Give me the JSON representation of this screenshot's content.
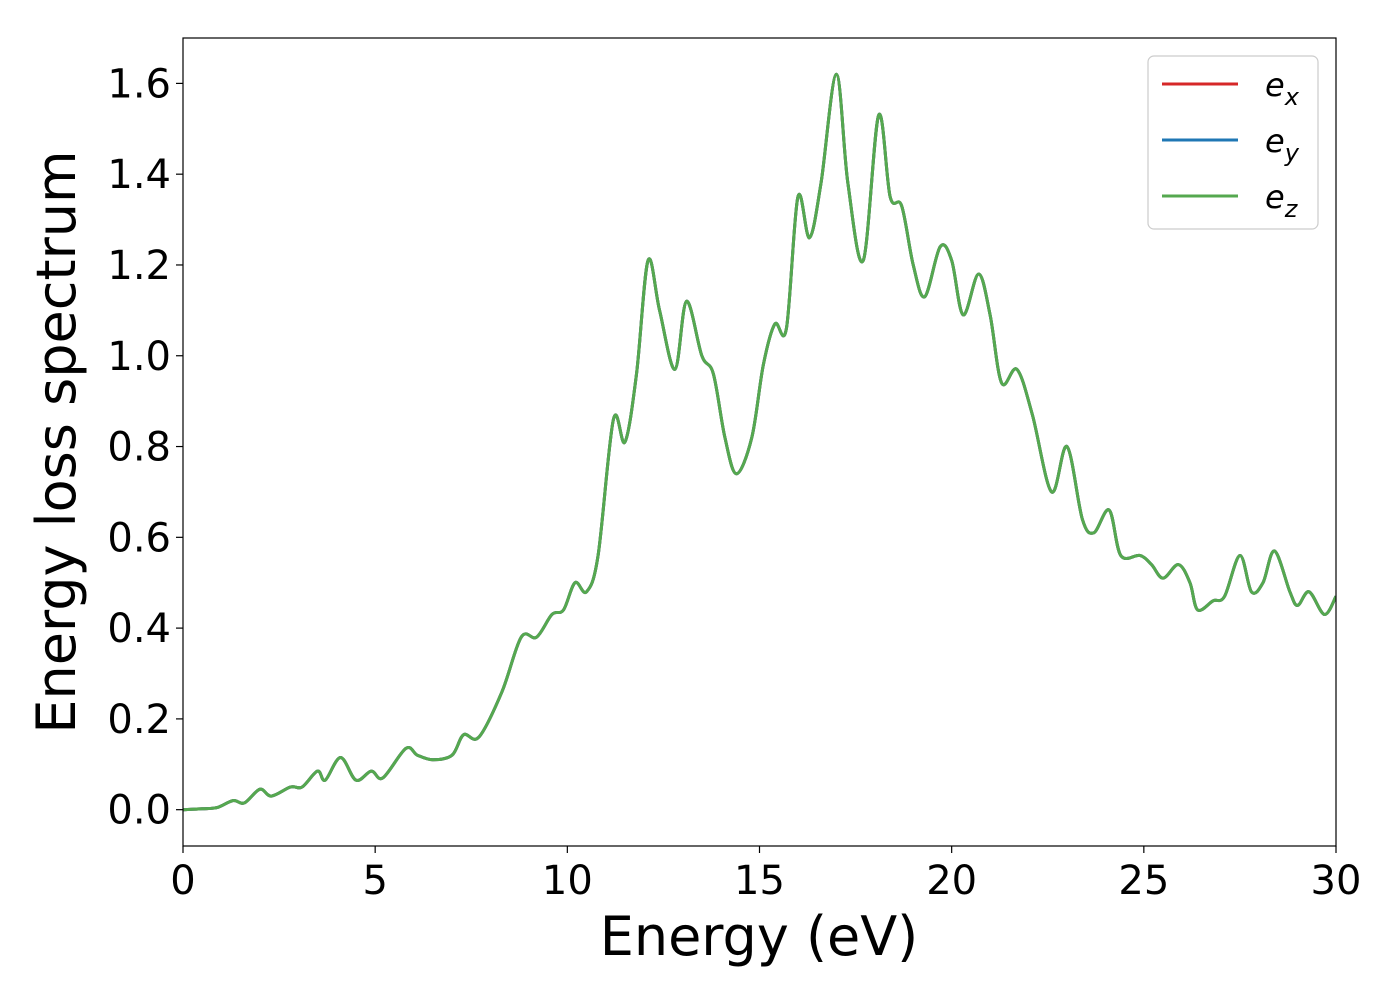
{
  "chart_data": {
    "type": "line",
    "xlabel": "Energy (eV)",
    "ylabel": "Energy loss spectrum",
    "xlim": [
      0,
      30
    ],
    "ylim": [
      -0.08,
      1.7
    ],
    "xticks": [
      "0",
      "5",
      "10",
      "15",
      "20",
      "25",
      "30"
    ],
    "yticks": [
      "0.0",
      "0.2",
      "0.4",
      "0.6",
      "0.8",
      "1.0",
      "1.2",
      "1.4",
      "1.6"
    ],
    "grid": false,
    "legend": {
      "placement": "top-right",
      "entries": [
        {
          "base": "e",
          "sub": "x",
          "color": "#d62728"
        },
        {
          "base": "e",
          "sub": "y",
          "color": "#1f77b4"
        },
        {
          "base": "e",
          "sub": "z",
          "color": "#55a84f"
        }
      ]
    },
    "x": [
      0,
      0.5,
      0.9,
      1.3,
      1.6,
      2.0,
      2.3,
      2.8,
      3.1,
      3.5,
      3.7,
      4.1,
      4.5,
      4.9,
      5.2,
      5.8,
      6.1,
      6.5,
      7.0,
      7.3,
      7.7,
      8.3,
      8.8,
      9.2,
      9.6,
      9.9,
      10.2,
      10.5,
      10.8,
      11.2,
      11.5,
      11.8,
      12.1,
      12.4,
      12.8,
      13.1,
      13.5,
      13.8,
      14.1,
      14.4,
      14.8,
      15.1,
      15.4,
      15.7,
      16.0,
      16.3,
      16.6,
      17.0,
      17.3,
      17.7,
      18.1,
      18.4,
      18.7,
      19.0,
      19.3,
      19.7,
      20.0,
      20.3,
      20.7,
      21.0,
      21.3,
      21.7,
      22.1,
      22.6,
      23.0,
      23.4,
      23.7,
      24.1,
      24.4,
      24.9,
      25.2,
      25.5,
      25.9,
      26.2,
      26.4,
      26.8,
      27.1,
      27.5,
      27.8,
      28.1,
      28.4,
      28.8,
      29.0,
      29.3,
      29.7,
      30.0
    ],
    "series": [
      {
        "name": "",
        "color": "#d62728",
        "values": [
          0.0,
          0.002,
          0.005,
          0.02,
          0.015,
          0.045,
          0.03,
          0.05,
          0.05,
          0.085,
          0.065,
          0.115,
          0.065,
          0.085,
          0.07,
          0.135,
          0.12,
          0.11,
          0.12,
          0.165,
          0.16,
          0.26,
          0.38,
          0.38,
          0.43,
          0.44,
          0.5,
          0.48,
          0.56,
          0.86,
          0.81,
          0.96,
          1.21,
          1.1,
          0.97,
          1.12,
          1.0,
          0.96,
          0.82,
          0.74,
          0.82,
          0.98,
          1.07,
          1.06,
          1.35,
          1.26,
          1.38,
          1.62,
          1.38,
          1.21,
          1.53,
          1.35,
          1.33,
          1.2,
          1.13,
          1.24,
          1.21,
          1.09,
          1.18,
          1.09,
          0.94,
          0.97,
          0.87,
          0.7,
          0.8,
          0.64,
          0.61,
          0.66,
          0.56,
          0.56,
          0.54,
          0.51,
          0.54,
          0.5,
          0.44,
          0.46,
          0.47,
          0.56,
          0.48,
          0.5,
          0.57,
          0.48,
          0.45,
          0.48,
          0.43,
          0.47
        ]
      },
      {
        "name": "",
        "color": "#1f77b4",
        "values": [
          0.0,
          0.002,
          0.005,
          0.02,
          0.015,
          0.045,
          0.03,
          0.05,
          0.05,
          0.085,
          0.065,
          0.115,
          0.065,
          0.085,
          0.07,
          0.135,
          0.12,
          0.11,
          0.12,
          0.165,
          0.16,
          0.26,
          0.38,
          0.38,
          0.43,
          0.44,
          0.5,
          0.48,
          0.56,
          0.86,
          0.81,
          0.96,
          1.21,
          1.1,
          0.97,
          1.12,
          1.0,
          0.96,
          0.82,
          0.74,
          0.82,
          0.98,
          1.07,
          1.06,
          1.35,
          1.26,
          1.38,
          1.62,
          1.38,
          1.21,
          1.53,
          1.35,
          1.33,
          1.2,
          1.13,
          1.24,
          1.21,
          1.09,
          1.18,
          1.09,
          0.94,
          0.97,
          0.87,
          0.7,
          0.8,
          0.64,
          0.61,
          0.66,
          0.56,
          0.56,
          0.54,
          0.51,
          0.54,
          0.5,
          0.44,
          0.46,
          0.47,
          0.56,
          0.48,
          0.5,
          0.57,
          0.48,
          0.45,
          0.48,
          0.43,
          0.47
        ]
      },
      {
        "name": "",
        "color": "#55a84f",
        "values": [
          0.0,
          0.002,
          0.005,
          0.02,
          0.015,
          0.045,
          0.03,
          0.05,
          0.05,
          0.085,
          0.065,
          0.115,
          0.065,
          0.085,
          0.07,
          0.135,
          0.12,
          0.11,
          0.12,
          0.165,
          0.16,
          0.26,
          0.38,
          0.38,
          0.43,
          0.44,
          0.5,
          0.48,
          0.56,
          0.86,
          0.81,
          0.96,
          1.21,
          1.1,
          0.97,
          1.12,
          1.0,
          0.96,
          0.82,
          0.74,
          0.82,
          0.98,
          1.07,
          1.06,
          1.35,
          1.26,
          1.38,
          1.62,
          1.38,
          1.21,
          1.53,
          1.35,
          1.33,
          1.2,
          1.13,
          1.24,
          1.21,
          1.09,
          1.18,
          1.09,
          0.94,
          0.97,
          0.87,
          0.7,
          0.8,
          0.64,
          0.61,
          0.66,
          0.56,
          0.56,
          0.54,
          0.51,
          0.54,
          0.5,
          0.44,
          0.46,
          0.47,
          0.56,
          0.48,
          0.5,
          0.57,
          0.48,
          0.45,
          0.48,
          0.43,
          0.47
        ]
      }
    ]
  }
}
